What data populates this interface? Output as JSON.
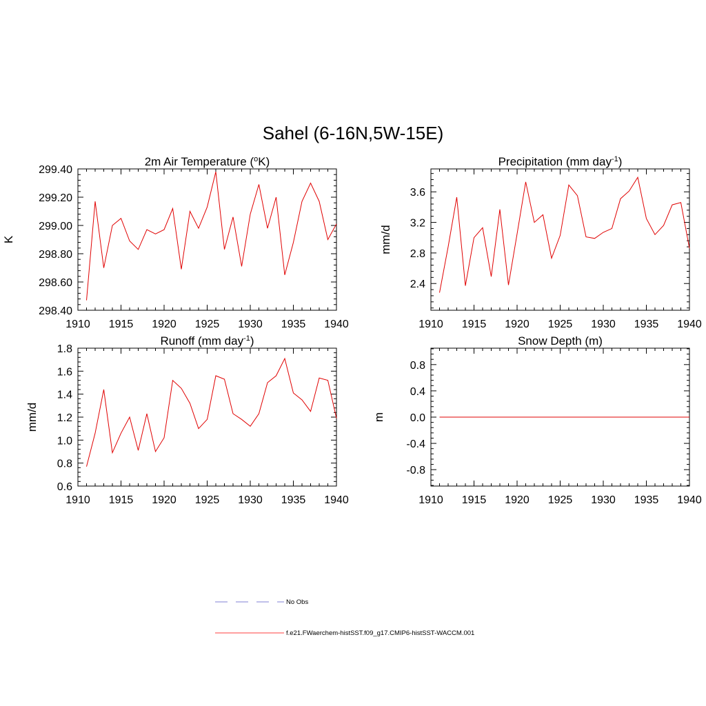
{
  "figure": {
    "title": "Sahel (6-16N,5W-15E)"
  },
  "legend": {
    "entries": [
      {
        "label": "No Obs",
        "color": "#9999dd",
        "dash": true
      },
      {
        "label": "f.e21.FWaerchem-histSST.f09_g17.CMIP6-histSST-WACCM.001",
        "color": "#ff6666",
        "dash": false
      }
    ]
  },
  "chart_data": [
    {
      "type": "line",
      "title_main": "2m Air Temperature (",
      "title_sup1": "o",
      "title_mid": "K)",
      "title_sup2": "",
      "title_end": "",
      "ylabel": "K",
      "xlim": [
        1910,
        1940
      ],
      "ylim": [
        298.4,
        299.4
      ],
      "xticks": [
        1910,
        1915,
        1920,
        1925,
        1930,
        1935,
        1940
      ],
      "yticks": [
        "298.40",
        "298.60",
        "298.80",
        "299.00",
        "299.20",
        "299.40"
      ],
      "ytick_values": [
        298.4,
        298.6,
        298.8,
        299.0,
        299.2,
        299.4
      ],
      "series": [
        {
          "color": "#e00000",
          "x": [
            1911,
            1912,
            1913,
            1914,
            1915,
            1916,
            1917,
            1918,
            1919,
            1920,
            1921,
            1922,
            1923,
            1924,
            1925,
            1926,
            1927,
            1928,
            1929,
            1930,
            1931,
            1932,
            1933,
            1934,
            1935,
            1936,
            1937,
            1938,
            1939,
            1940
          ],
          "values": [
            298.47,
            299.17,
            298.7,
            299.0,
            299.05,
            298.89,
            298.83,
            298.97,
            298.94,
            298.97,
            299.12,
            298.69,
            299.1,
            298.98,
            299.13,
            299.38,
            298.83,
            299.06,
            298.71,
            299.08,
            299.29,
            298.98,
            299.2,
            298.65,
            298.88,
            299.17,
            299.3,
            299.17,
            298.9,
            299.01
          ]
        }
      ]
    },
    {
      "type": "line",
      "title_main": "Precipitation (mm day",
      "title_sup1": "-1",
      "title_mid": ")",
      "title_sup2": "",
      "title_end": "",
      "ylabel": "mm/d",
      "xlim": [
        1910,
        1940
      ],
      "ylim": [
        2.05,
        3.9
      ],
      "xticks": [
        1910,
        1915,
        1920,
        1925,
        1930,
        1935,
        1940
      ],
      "yticks": [
        "2.4",
        "2.8",
        "3.2",
        "3.6"
      ],
      "ytick_values": [
        2.4,
        2.8,
        3.2,
        3.6
      ],
      "series": [
        {
          "color": "#e00000",
          "x": [
            1911,
            1912,
            1913,
            1914,
            1915,
            1916,
            1917,
            1918,
            1919,
            1920,
            1921,
            1922,
            1923,
            1924,
            1925,
            1926,
            1927,
            1928,
            1929,
            1930,
            1931,
            1932,
            1933,
            1934,
            1935,
            1936,
            1937,
            1938,
            1939,
            1940
          ],
          "values": [
            2.28,
            2.88,
            3.53,
            2.37,
            3.0,
            3.13,
            2.49,
            3.37,
            2.38,
            3.05,
            3.73,
            3.2,
            3.3,
            2.73,
            3.03,
            3.69,
            3.55,
            3.01,
            2.99,
            3.07,
            3.12,
            3.51,
            3.61,
            3.79,
            3.25,
            3.04,
            3.16,
            3.43,
            3.46,
            2.86
          ]
        }
      ]
    },
    {
      "type": "line",
      "title_main": "Runoff (mm day",
      "title_sup1": "-1",
      "title_mid": ")",
      "title_sup2": "",
      "title_end": "",
      "ylabel": "mm/d",
      "xlim": [
        1910,
        1940
      ],
      "ylim": [
        0.6,
        1.8
      ],
      "xticks": [
        1910,
        1915,
        1920,
        1925,
        1930,
        1935,
        1940
      ],
      "yticks": [
        "0.6",
        "0.8",
        "1.0",
        "1.2",
        "1.4",
        "1.6",
        "1.8"
      ],
      "ytick_values": [
        0.6,
        0.8,
        1.0,
        1.2,
        1.4,
        1.6,
        1.8
      ],
      "series": [
        {
          "color": "#e00000",
          "x": [
            1911,
            1912,
            1913,
            1914,
            1915,
            1916,
            1917,
            1918,
            1919,
            1920,
            1921,
            1922,
            1923,
            1924,
            1925,
            1926,
            1927,
            1928,
            1929,
            1930,
            1931,
            1932,
            1933,
            1934,
            1935,
            1936,
            1937,
            1938,
            1939,
            1940
          ],
          "values": [
            0.77,
            1.06,
            1.44,
            0.89,
            1.06,
            1.2,
            0.91,
            1.23,
            0.9,
            1.02,
            1.52,
            1.45,
            1.32,
            1.1,
            1.18,
            1.56,
            1.53,
            1.23,
            1.18,
            1.12,
            1.23,
            1.5,
            1.56,
            1.71,
            1.41,
            1.35,
            1.25,
            1.54,
            1.52,
            1.19
          ]
        }
      ]
    },
    {
      "type": "line",
      "title_main": "Snow Depth (m)",
      "title_sup1": "",
      "title_mid": "",
      "title_sup2": "",
      "title_end": "",
      "ylabel": "m",
      "xlim": [
        1910,
        1940
      ],
      "ylim": [
        -1.05,
        1.05
      ],
      "xticks": [
        1910,
        1915,
        1920,
        1925,
        1930,
        1935,
        1940
      ],
      "yticks": [
        "-0.8",
        "-0.4",
        "0.0",
        "0.4",
        "0.8"
      ],
      "ytick_values": [
        -0.8,
        -0.4,
        0.0,
        0.4,
        0.8
      ],
      "series": [
        {
          "color": "#e00000",
          "x": [
            1911,
            1940
          ],
          "values": [
            0.0,
            0.0
          ]
        }
      ]
    }
  ]
}
